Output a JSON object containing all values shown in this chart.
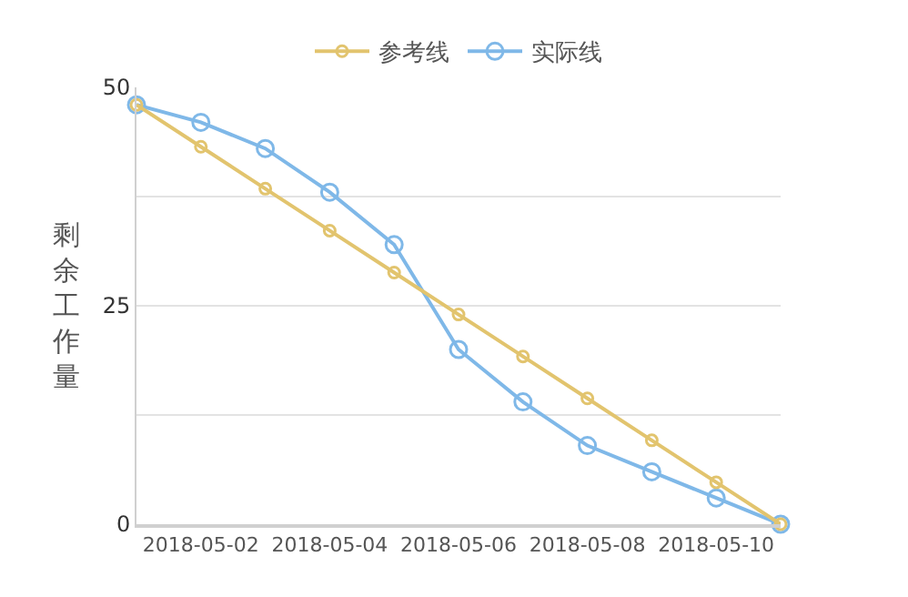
{
  "chart_data": {
    "type": "line",
    "ylabel": "剩余工作量",
    "x": [
      "2018-05-01",
      "2018-05-02",
      "2018-05-03",
      "2018-05-04",
      "2018-05-05",
      "2018-05-06",
      "2018-05-07",
      "2018-05-08",
      "2018-05-09",
      "2018-05-10",
      "2018-05-11"
    ],
    "series": [
      {
        "name": "参考线",
        "color": "#e2c46e",
        "values": [
          48,
          43.2,
          38.4,
          33.6,
          28.8,
          24,
          19.2,
          14.4,
          9.6,
          4.8,
          0
        ]
      },
      {
        "name": "实际线",
        "color": "#7fb8e8",
        "values": [
          48,
          46,
          43,
          38,
          32,
          20,
          14,
          9,
          6,
          3,
          0
        ]
      }
    ],
    "xlim": [
      "2018-05-01",
      "2018-05-11"
    ],
    "xticks": [
      "2018-05-02",
      "2018-05-04",
      "2018-05-06",
      "2018-05-08",
      "2018-05-10"
    ],
    "ylim": [
      0,
      50
    ],
    "yticks": [
      0,
      {
        "value": 12.5,
        "label": null
      },
      25,
      {
        "value": 37.5,
        "label": null
      },
      50
    ],
    "grid": "y",
    "legend": "top",
    "marker": "circle",
    "line_style": "solid"
  }
}
